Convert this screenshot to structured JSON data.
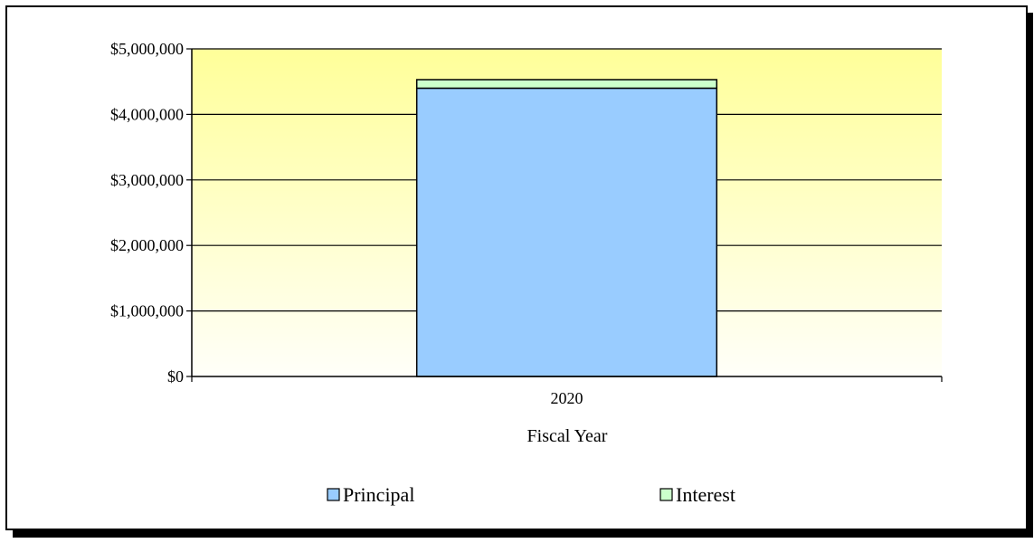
{
  "chart_data": {
    "type": "bar",
    "stacked": true,
    "categories": [
      "2020"
    ],
    "series": [
      {
        "name": "Principal",
        "values": [
          4400000
        ],
        "color": "#99ccff"
      },
      {
        "name": "Interest",
        "values": [
          130000
        ],
        "color": "#ccffcc"
      }
    ],
    "xlabel": "Fiscal Year",
    "ylabel": "",
    "ylim": [
      0,
      5000000
    ],
    "yticks": [
      0,
      1000000,
      2000000,
      3000000,
      4000000,
      5000000
    ],
    "ytick_labels": [
      "$0",
      "$1,000,000",
      "$2,000,000",
      "$3,000,000",
      "$4,000,000",
      "$5,000,000"
    ],
    "grid": true,
    "legend_position": "bottom",
    "plot_background": [
      "#ffff99",
      "#fffff9"
    ]
  }
}
